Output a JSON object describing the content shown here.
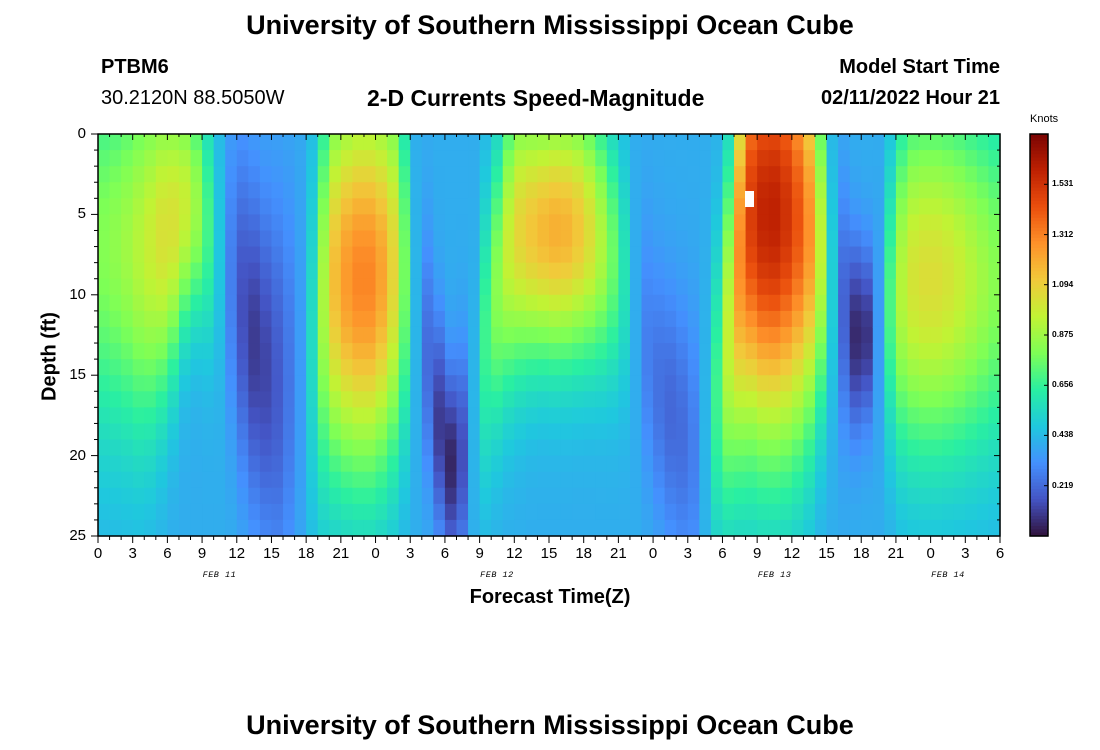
{
  "page": {
    "title": "University of Southern Mississippi Ocean Cube",
    "footer_title": "University of Southern Mississippi Ocean Cube",
    "station_id": "PTBM6",
    "coordinates": "30.2120N  88.5050W",
    "model_start_label": "Model Start Time",
    "model_start_value": "02/11/2022 Hour 21"
  },
  "chart_data": {
    "type": "heatmap",
    "title": "2-D Currents Speed-Magnitude",
    "xlabel": "Forecast Time(Z)",
    "ylabel": "Depth (ft)",
    "x_range_hours": [
      0,
      78
    ],
    "y_range_ft": [
      0,
      25
    ],
    "y_inverted": true,
    "x_ticks": [
      "0",
      "3",
      "6",
      "9",
      "12",
      "15",
      "18",
      "21",
      "0",
      "3",
      "6",
      "9",
      "12",
      "15",
      "18",
      "21",
      "0",
      "3",
      "6",
      "9",
      "12",
      "15",
      "18",
      "21",
      "0",
      "3",
      "6"
    ],
    "y_ticks": [
      "0",
      "5",
      "10",
      "15",
      "20",
      "25"
    ],
    "day_labels": [
      {
        "label": "FEB 11",
        "center_hour": 10.5
      },
      {
        "label": "FEB 12",
        "center_hour": 34.5
      },
      {
        "label": "FEB 13",
        "center_hour": 58.5
      },
      {
        "label": "FEB 14",
        "center_hour": 73.5
      }
    ],
    "colorbar": {
      "unit": "Knots",
      "min": 0,
      "max": 1.75,
      "tick_labels": [
        "1.531",
        "1.312",
        "1.094",
        "0.875",
        "0.656",
        "0.438",
        "0.219"
      ],
      "tick_values": [
        1.531,
        1.312,
        1.094,
        0.875,
        0.656,
        0.438,
        0.219
      ],
      "colormap": [
        "#30123b",
        "#4454c4",
        "#4490fe",
        "#1fc8de",
        "#29efa2",
        "#7dff56",
        "#c1f334",
        "#f1ca3a",
        "#fe922a",
        "#ea4f0d",
        "#be2102",
        "#7a0403"
      ]
    },
    "grid_cols": 78,
    "grid_rows": 25,
    "time_profile_hours": [
      0,
      2,
      4,
      6,
      8,
      10,
      11,
      12,
      13,
      14,
      16,
      18,
      19,
      20,
      22,
      24,
      26,
      27,
      28,
      29,
      30,
      31,
      32,
      33,
      35,
      36,
      38,
      40,
      42,
      44,
      46,
      47,
      48,
      50,
      52,
      54,
      56,
      58,
      60,
      62,
      63,
      64,
      65,
      66,
      67,
      68,
      69,
      70,
      72,
      74,
      76,
      78
    ],
    "peak_speed_knots": [
      0.8,
      0.85,
      0.95,
      1.05,
      0.95,
      0.6,
      0.35,
      0.2,
      0.1,
      0.1,
      0.2,
      0.4,
      0.7,
      1.1,
      1.3,
      1.3,
      1.0,
      0.55,
      0.3,
      0.15,
      0.05,
      0.05,
      0.25,
      0.6,
      0.9,
      1.05,
      1.15,
      1.2,
      1.1,
      0.85,
      0.5,
      0.3,
      0.25,
      0.2,
      0.3,
      0.8,
      1.45,
      1.62,
      1.5,
      1.2,
      0.7,
      0.3,
      0.1,
      0.02,
      0.15,
      0.55,
      0.85,
      1.0,
      1.05,
      1.0,
      0.9,
      0.8
    ],
    "peak_depth_ft": [
      7,
      7,
      7,
      6,
      4,
      6,
      8,
      10,
      12,
      14,
      16,
      14,
      11,
      9,
      9,
      9,
      8,
      9,
      12,
      16,
      20,
      21,
      19,
      14,
      8,
      6,
      6,
      6,
      6,
      7,
      9,
      12,
      15,
      18,
      20,
      15,
      5,
      5,
      5,
      6,
      8,
      10,
      12,
      13,
      12,
      11,
      10,
      9,
      9,
      9,
      9,
      9
    ],
    "profile_width_ft": [
      12,
      12,
      12,
      10,
      7,
      8,
      9,
      10,
      10,
      10,
      12,
      12,
      12,
      12,
      12,
      12,
      12,
      10,
      8,
      7,
      6,
      6,
      7,
      9,
      9,
      9,
      8,
      8,
      8,
      8,
      8,
      8,
      8,
      8,
      9,
      10,
      14,
      14,
      14,
      12,
      9,
      8,
      7,
      5,
      6,
      8,
      10,
      11,
      11,
      11,
      11,
      11
    ],
    "background_speed_knots": 0.4
  }
}
